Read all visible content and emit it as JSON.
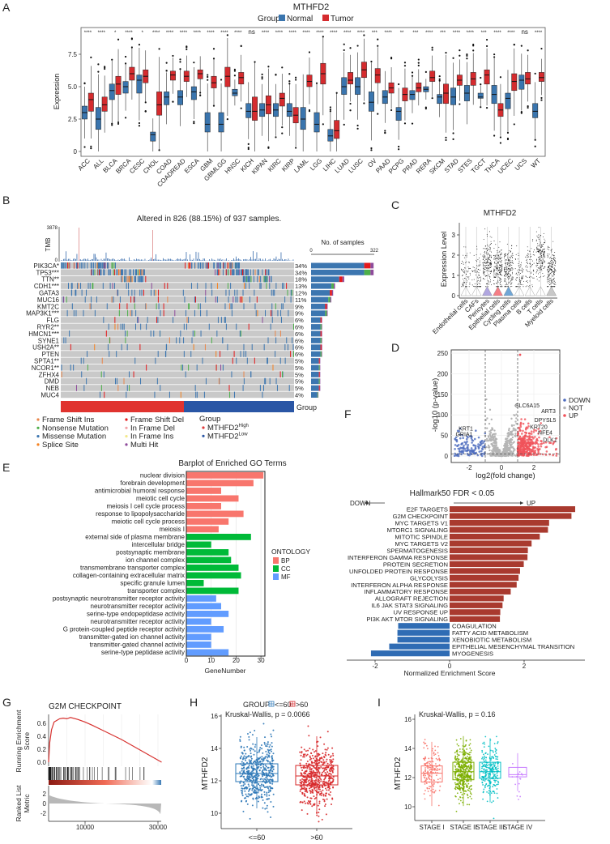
{
  "panel_labels": [
    "A",
    "B",
    "C",
    "D",
    "E",
    "F",
    "G",
    "H",
    "I"
  ],
  "chart_data": [
    {
      "type": "box",
      "title": "MTHFD2",
      "legend_title": "Group",
      "series": [
        {
          "name": "Normal",
          "color": "#3A75AE"
        },
        {
          "name": "Tumor",
          "color": "#D52B2E"
        }
      ],
      "ylabel": "Expression",
      "yticks": [
        "0",
        "2.5",
        "5.0",
        "7.5"
      ],
      "ylim": [
        -0.4,
        9.5
      ],
      "categories": [
        "ACC",
        "ALL",
        "BLCA",
        "BRCA",
        "CESC",
        "CHOL",
        "COAD",
        "COADREAD",
        "ESCA",
        "GBM",
        "GBMLGG",
        "HNSC",
        "KICH",
        "KIPAN",
        "KIRC",
        "KIRP",
        "LAML",
        "LGG",
        "LIHC",
        "LUAD",
        "LUSC",
        "OV",
        "PAAD",
        "PCPG",
        "PRAD",
        "RERA",
        "SKCM",
        "STAD",
        "STES",
        "TGCT",
        "THCA",
        "UCEC",
        "UCS",
        "WT"
      ],
      "significance": [
        "****",
        "****",
        "*",
        "****",
        "*",
        "****",
        "****",
        "****",
        "****",
        "****",
        "****",
        "****",
        "ns",
        "****",
        "****",
        "****",
        "****",
        "****",
        "****",
        "****",
        "****",
        "***",
        "****",
        "**",
        "***",
        "****",
        "***",
        "****",
        "****",
        "***",
        "****",
        "****",
        "ns",
        "****"
      ],
      "normal_q1_median_q3": [
        [
          2.5,
          3.0,
          3.5
        ],
        [
          1.7,
          2.5,
          3.4
        ],
        [
          4.0,
          4.7,
          5.2
        ],
        [
          4.5,
          5.0,
          5.4
        ],
        [
          4.5,
          5.5,
          5.9
        ],
        [
          0.8,
          1.3,
          1.5
        ],
        [
          3.6,
          4.2,
          4.6
        ],
        [
          3.6,
          4.2,
          4.7
        ],
        [
          4.0,
          4.6,
          5.0
        ],
        [
          1.5,
          2.1,
          3.0
        ],
        [
          1.5,
          2.1,
          3.0
        ],
        [
          4.3,
          4.5,
          4.8
        ],
        [
          2.6,
          3.1,
          3.7
        ],
        [
          2.7,
          3.2,
          3.7
        ],
        [
          2.7,
          3.2,
          3.7
        ],
        [
          2.7,
          3.1,
          3.7
        ],
        [
          1.7,
          2.5,
          3.4
        ],
        [
          1.5,
          2.1,
          3.0
        ],
        [
          0.8,
          1.2,
          1.7
        ],
        [
          4.4,
          5.0,
          5.7
        ],
        [
          4.4,
          5.0,
          5.7
        ],
        [
          3.1,
          3.8,
          4.6
        ],
        [
          3.7,
          4.2,
          4.7
        ],
        [
          2.4,
          3.1,
          3.4
        ],
        [
          4.0,
          4.4,
          4.7
        ],
        [
          4.6,
          4.8,
          5.0
        ],
        [
          3.7,
          4.2,
          4.4
        ],
        [
          3.6,
          4.2,
          4.9
        ],
        [
          3.9,
          4.5,
          5.1
        ],
        [
          4.1,
          4.2,
          4.5
        ],
        [
          3.7,
          4.4,
          5.1
        ],
        [
          3.3,
          4.1,
          4.5
        ],
        [
          4.8,
          5.5,
          5.9
        ],
        [
          2.6,
          3.1,
          3.7
        ]
      ],
      "tumor_q1_median_q3": [
        [
          3.1,
          4.0,
          4.5
        ],
        [
          3.1,
          3.6,
          4.2
        ],
        [
          4.4,
          5.2,
          5.8
        ],
        [
          5.5,
          6.0,
          6.5
        ],
        [
          5.3,
          5.8,
          6.3
        ],
        [
          2.8,
          3.6,
          4.6
        ],
        [
          5.5,
          5.9,
          6.2
        ],
        [
          5.4,
          5.8,
          6.2
        ],
        [
          5.6,
          6.0,
          6.3
        ],
        [
          4.9,
          5.3,
          5.8
        ],
        [
          5.0,
          5.8,
          6.5
        ],
        [
          5.2,
          5.7,
          6.1
        ],
        [
          2.4,
          3.1,
          4.2
        ],
        [
          2.9,
          3.6,
          4.3
        ],
        [
          3.5,
          4.1,
          4.5
        ],
        [
          2.2,
          2.8,
          3.4
        ],
        [
          5.0,
          5.4,
          5.9
        ],
        [
          5.2,
          6.0,
          6.8
        ],
        [
          1.0,
          1.6,
          2.4
        ],
        [
          5.2,
          5.5,
          6.1
        ],
        [
          5.7,
          6.3,
          6.9
        ],
        [
          5.3,
          5.9,
          6.4
        ],
        [
          4.5,
          4.9,
          5.3
        ],
        [
          3.9,
          4.4,
          4.9
        ],
        [
          4.6,
          4.9,
          5.3
        ],
        [
          5.4,
          5.7,
          6.2
        ],
        [
          3.7,
          4.5,
          5.2
        ],
        [
          5.1,
          5.5,
          5.9
        ],
        [
          5.1,
          5.6,
          6.1
        ],
        [
          5.2,
          5.9,
          6.3
        ],
        [
          2.7,
          3.2,
          3.7
        ],
        [
          4.7,
          5.4,
          6.0
        ],
        [
          5.2,
          5.6,
          6.1
        ],
        [
          5.4,
          5.7,
          6.1
        ]
      ]
    },
    {
      "type": "oncoplot",
      "title": "Altered in 826 (88.15%) of 937 samples.",
      "tmb_label": "TMB",
      "tmb_max": "3878",
      "tmb_min": "0",
      "genes": [
        "PIK3CA*",
        "TP53***",
        "TTN**",
        "CDH1***",
        "GATA3",
        "MUC16",
        "KMT2C",
        "MAP3K1***",
        "FLG",
        "RYR2**",
        "HMCN1***",
        "SYNE1",
        "USH2A**",
        "PTEN",
        "SPTA1**",
        "NCOR1**",
        "ZFHX4",
        "DMD",
        "NEB",
        "MUC4"
      ],
      "percents": [
        "34%",
        "34%",
        "18%",
        "13%",
        "12%",
        "11%",
        "9%",
        "9%",
        "6%",
        "6%",
        "6%",
        "6%",
        "6%",
        "6%",
        "5%",
        "5%",
        "5%",
        "5%",
        "5%",
        "4%"
      ],
      "bar_title": "No. of samples",
      "bar_min": "0",
      "bar_max": "322",
      "group_label": "Group",
      "background_color": "#C9C9C9",
      "legend": {
        "variants": [
          {
            "name": "Frame Shift Ins",
            "color": "#E9864A"
          },
          {
            "name": "Nonsense Mutation",
            "color": "#4DAF4A"
          },
          {
            "name": "Missense Mutation",
            "color": "#3C76B0"
          },
          {
            "name": "Splice Site",
            "color": "#F58220"
          },
          {
            "name": "Frame Shift Del",
            "color": "#E41A1C"
          },
          {
            "name": "In Frame Del",
            "color": "#F2A1A7"
          },
          {
            "name": "In Frame Ins",
            "color": "#F3E88A"
          },
          {
            "name": "Multi Hit",
            "color": "#8E4B9B"
          }
        ],
        "group_title": "Group",
        "groups": [
          {
            "name": "MTHFD2",
            "sup": "High",
            "color": "#E03A3A"
          },
          {
            "name": "MTHFD2",
            "sup": "Low",
            "color": "#2A56A5"
          }
        ]
      }
    },
    {
      "type": "violin",
      "title": "MTHFD2",
      "ylabel": "Expression Level",
      "yticks": [
        "0",
        "1",
        "2",
        "3"
      ],
      "categories": [
        "Endothelial cells",
        "CAFs",
        "Pericytes",
        "Epithelial cells",
        "Cycling cells",
        "Plasma cells",
        "B cells",
        "T cells",
        "Myeloid cells"
      ],
      "median_expression": [
        1.0,
        1.0,
        1.6,
        1.4,
        1.4,
        1.0,
        1.5,
        2.0,
        1.3
      ],
      "violin_colors": [
        "#F8766D",
        "#D39200",
        "#B0A6E0",
        "#F57E86",
        "#6FA6D6",
        "#00C19F",
        "#619CFF",
        "#DB72FB",
        "#C8C8C8"
      ]
    },
    {
      "type": "scatter",
      "xlabel": "log2(fold change)",
      "ylabel": "-log10 (p-value)",
      "xticks": [
        "-2",
        "0",
        "2"
      ],
      "yticks": [
        "0",
        "50",
        "100",
        "150",
        "200",
        "250"
      ],
      "xlim": [
        -3.1,
        3.6
      ],
      "ylim": [
        -10,
        265
      ],
      "fold_change_threshold": 1,
      "legend": [
        {
          "name": "DOWN",
          "color": "#4C6BBE"
        },
        {
          "name": "NOT",
          "color": "#B5B5B5"
        },
        {
          "name": "UP",
          "color": "#F0525A"
        }
      ],
      "labeled_genes": [
        {
          "name": "KRT1",
          "x": -2.2,
          "y": 62,
          "group": "DOWN"
        },
        {
          "name": "GRIA1",
          "x": -2.3,
          "y": 48,
          "group": "DOWN"
        },
        {
          "name": "SLC6A15",
          "x": 1.6,
          "y": 118,
          "group": "UP"
        },
        {
          "name": "ART3",
          "x": 2.9,
          "y": 104,
          "group": "UP"
        },
        {
          "name": "DPYSL5",
          "x": 2.7,
          "y": 83,
          "group": "UP"
        },
        {
          "name": "KRT20",
          "x": 2.3,
          "y": 66,
          "group": "UP"
        },
        {
          "name": "NFE4",
          "x": 2.7,
          "y": 52,
          "group": "UP"
        },
        {
          "name": "DLK1",
          "x": 3.0,
          "y": 34,
          "group": "UP"
        }
      ]
    },
    {
      "type": "bar",
      "orientation": "horizontal",
      "title": "Barplot of Enriched GO Terms",
      "xlabel": "GeneNumber",
      "xticks": [
        "0",
        "10",
        "20",
        "30"
      ],
      "legend_title": "ONTOLOGY",
      "ontologies": [
        {
          "name": "BP",
          "color": "#F8766D"
        },
        {
          "name": "CC",
          "color": "#00BA38"
        },
        {
          "name": "MF",
          "color": "#619CFF"
        }
      ],
      "terms": [
        {
          "label": "nuclear division",
          "value": 31,
          "ontology": "BP"
        },
        {
          "label": "forebrain development",
          "value": 27,
          "ontology": "BP"
        },
        {
          "label": "antimicrobial humoral response",
          "value": 14,
          "ontology": "BP"
        },
        {
          "label": "meiotic cell cycle",
          "value": 21,
          "ontology": "BP"
        },
        {
          "label": "meiosis I cell cycle process",
          "value": 14,
          "ontology": "BP"
        },
        {
          "label": "response to lipopolysaccharide",
          "value": 23,
          "ontology": "BP"
        },
        {
          "label": "meiotic cell cycle process",
          "value": 17,
          "ontology": "BP"
        },
        {
          "label": "meiosis I",
          "value": 13,
          "ontology": "BP"
        },
        {
          "label": "external side of plasma membrane",
          "value": 26,
          "ontology": "CC"
        },
        {
          "label": "intercellular bridge",
          "value": 10,
          "ontology": "CC"
        },
        {
          "label": "postsynaptic membrane",
          "value": 17,
          "ontology": "CC"
        },
        {
          "label": "ion channel complex",
          "value": 18,
          "ontology": "CC"
        },
        {
          "label": "transmembrane transporter complex",
          "value": 21,
          "ontology": "CC"
        },
        {
          "label": "collagen-containing extracellular matrix",
          "value": 22,
          "ontology": "CC"
        },
        {
          "label": "specific granule lumen",
          "value": 7,
          "ontology": "CC"
        },
        {
          "label": "transporter complex",
          "value": 21,
          "ontology": "CC"
        },
        {
          "label": "postsynaptic neurotransmitter receptor activity",
          "value": 12,
          "ontology": "MF"
        },
        {
          "label": "neurotransmitter receptor activity",
          "value": 14,
          "ontology": "MF"
        },
        {
          "label": "serine-type endopeptidase activity",
          "value": 17,
          "ontology": "MF"
        },
        {
          "label": "neurotransmitter receptor activity",
          "value": 10,
          "ontology": "MF"
        },
        {
          "label": "G protein-coupled peptide receptor activity",
          "value": 15,
          "ontology": "MF"
        },
        {
          "label": "transmitter-gated ion channel activity",
          "value": 10,
          "ontology": "MF"
        },
        {
          "label": "transmitter-gated channel activity",
          "value": 10,
          "ontology": "MF"
        },
        {
          "label": "serine-type peptidase activity",
          "value": 17,
          "ontology": "MF"
        }
      ]
    },
    {
      "type": "bar",
      "orientation": "horizontal",
      "title": "Hallmark50  FDR < 0.05",
      "down_label": "DOWN",
      "up_label": "UP",
      "xlabel": "Normalized Enrichment Score",
      "xticks": [
        "-2",
        "0",
        "2"
      ],
      "up_color": "#A93A2F",
      "down_color": "#2F6CB4",
      "terms": [
        {
          "label": "E2F TARGETS",
          "value": 3.37
        },
        {
          "label": "G2M CHECKPOINT",
          "value": 3.27
        },
        {
          "label": "MYC TARGETS V1",
          "value": 2.67
        },
        {
          "label": "MTORC1 SIGNALING",
          "value": 2.64
        },
        {
          "label": "MITOTIC SPINDLE",
          "value": 2.42
        },
        {
          "label": "MYC TARGETS V2",
          "value": 2.2
        },
        {
          "label": "SPERMATOGENESIS",
          "value": 2.1
        },
        {
          "label": "INTERFERON GAMMA RESPONSE",
          "value": 2.09
        },
        {
          "label": "PROTEIN SECRETION",
          "value": 1.99
        },
        {
          "label": "UNFOLDED PROTEIN RESPONSE",
          "value": 1.89
        },
        {
          "label": "GLYCOLYSIS",
          "value": 1.85
        },
        {
          "label": "INTERFERON ALPHA RESPONSE",
          "value": 1.8
        },
        {
          "label": "INFLAMMATORY RESPONSE",
          "value": 1.64
        },
        {
          "label": "ALLOGRAFT REJECTION",
          "value": 1.45
        },
        {
          "label": "IL6 JAK STAT3 SIGNALING",
          "value": 1.42
        },
        {
          "label": "UV RESPONSE UP",
          "value": 1.36
        },
        {
          "label": "PI3K AKT MTOR SIGNALING",
          "value": 1.35
        },
        {
          "label": "COAGULATION",
          "value": -1.38
        },
        {
          "label": "FATTY ACID METABOLISM",
          "value": -1.4
        },
        {
          "label": "XENOBIOTIC METABOLISM",
          "value": -1.4
        },
        {
          "label": "EPITHELIAL MESENCHYMAL TRANSITION",
          "value": -1.62
        },
        {
          "label": "MYOGENESIS",
          "value": -2.11
        }
      ]
    },
    {
      "type": "line",
      "title": "G2M CHECKPOINT",
      "ylabel_top": [
        "Running Enrichment",
        "Score"
      ],
      "ylabel_bottom": [
        "Ranked List",
        "Metric"
      ],
      "es_yticks": [
        "0.0",
        "0.2",
        "0.4",
        "0.6"
      ],
      "rank_yticks": [
        "2",
        "0",
        "-2"
      ],
      "xticks": [
        "10000",
        "30000"
      ],
      "line_color": "#D7312E",
      "es_curve": [
        [
          0,
          0
        ],
        [
          300,
          0.3
        ],
        [
          800,
          0.5
        ],
        [
          1500,
          0.62
        ],
        [
          3000,
          0.67
        ],
        [
          4000,
          0.68
        ],
        [
          5000,
          0.67
        ],
        [
          6000,
          0.69
        ],
        [
          8000,
          0.66
        ],
        [
          10000,
          0.62
        ],
        [
          12000,
          0.57
        ],
        [
          20000,
          0.35
        ],
        [
          31000,
          0.0
        ]
      ]
    },
    {
      "type": "box",
      "legend_title": "GROUP",
      "stat": "Kruskal-Wallis, p = 0.0066",
      "ylabel": "MTHFD2",
      "yticks": [
        "10",
        "12",
        "14",
        "16"
      ],
      "groups": [
        {
          "name": "<=60",
          "color": "#2E78B7",
          "q1_median_q3": [
            11.95,
            12.45,
            13.05
          ]
        },
        {
          "name": ">60",
          "color": "#D7282A",
          "q1_median_q3": [
            11.75,
            12.3,
            12.95
          ]
        }
      ]
    },
    {
      "type": "box",
      "stat": "Kruskal-Wallis, p = 0.16",
      "ylabel": "MTHFD2",
      "yticks": [
        "10",
        "12",
        "14",
        "16"
      ],
      "groups": [
        {
          "name": "STAGE I",
          "color": "#F8766D",
          "q1_median_q3": [
            11.7,
            12.3,
            12.8
          ]
        },
        {
          "name": "STAGE II",
          "color": "#7CAE00",
          "q1_median_q3": [
            11.85,
            12.4,
            13.05
          ]
        },
        {
          "name": "STAGE III",
          "color": "#00BFC4",
          "q1_median_q3": [
            11.95,
            12.4,
            13.05
          ]
        },
        {
          "name": "STAGE IV",
          "color": "#C77CFF",
          "q1_median_q3": [
            12.05,
            12.2,
            12.7
          ]
        }
      ]
    }
  ]
}
